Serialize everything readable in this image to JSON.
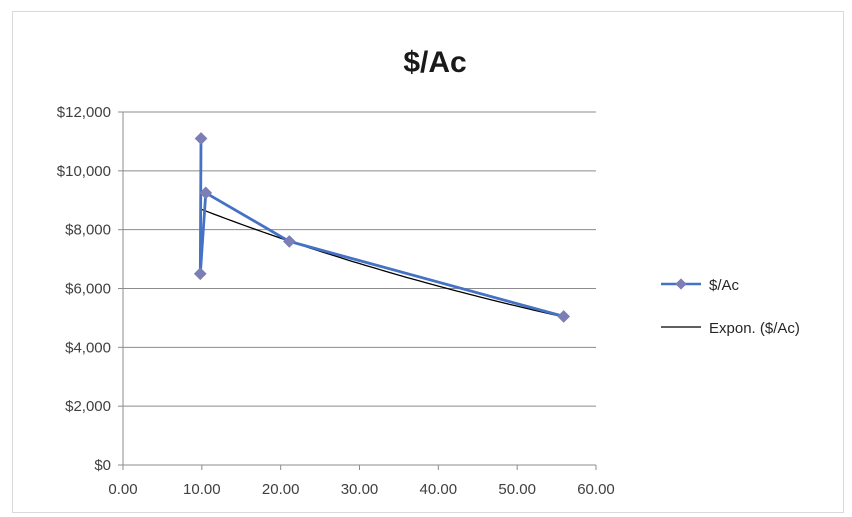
{
  "chart_data": {
    "type": "scatter",
    "title": "$/Ac",
    "xlabel": "",
    "ylabel": "",
    "xlim": [
      0,
      60
    ],
    "ylim": [
      0,
      12000
    ],
    "x_ticks": [
      0,
      10,
      20,
      30,
      40,
      50,
      60
    ],
    "x_tick_labels": [
      "0.00",
      "10.00",
      "20.00",
      "30.00",
      "40.00",
      "50.00",
      "60.00"
    ],
    "y_ticks": [
      0,
      2000,
      4000,
      6000,
      8000,
      10000,
      12000
    ],
    "y_tick_labels": [
      "$0",
      "$2,000",
      "$4,000",
      "$6,000",
      "$8,000",
      "$10,000",
      "$12,000"
    ],
    "grid": "horizontal",
    "legend_position": "right",
    "series": [
      {
        "name": "$/Ac",
        "color": "#4472c4",
        "marker_color": "#7b7fb5",
        "points": [
          {
            "x": 9.9,
            "y": 11100
          },
          {
            "x": 9.8,
            "y": 6500
          },
          {
            "x": 10.5,
            "y": 9250
          },
          {
            "x": 21.1,
            "y": 7600
          },
          {
            "x": 55.9,
            "y": 5050
          }
        ]
      },
      {
        "name": "Expon. ($/Ac)",
        "color": "#000000",
        "trend": {
          "type": "exponential",
          "x_range": [
            10,
            56
          ],
          "a": 9780,
          "b": -0.01188
        }
      }
    ]
  }
}
